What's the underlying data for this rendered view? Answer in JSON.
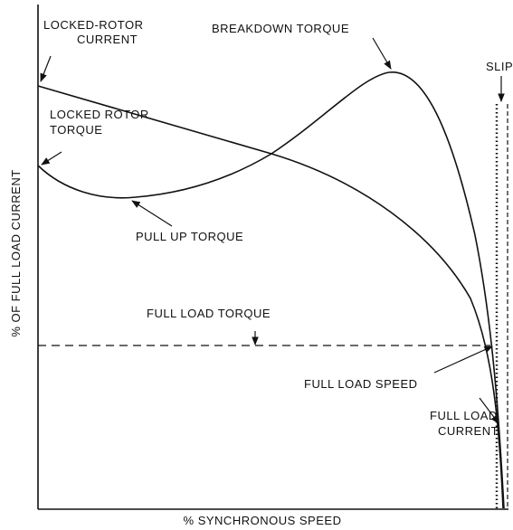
{
  "axes": {
    "y_label": "% OF FULL LOAD CURRENT",
    "x_label": "% SYNCHRONOUS SPEED"
  },
  "annotations": {
    "breakdown_torque": "BREAKDOWN TORQUE",
    "locked_rotor_current": [
      "LOCKED-ROTOR",
      "CURRENT"
    ],
    "slip": "SLIP",
    "locked_rotor_torque": [
      "LOCKED ROTOR",
      "TORQUE"
    ],
    "pull_up_torque": "PULL UP TORQUE",
    "full_load_torque": "FULL LOAD TORQUE",
    "full_load_speed": "FULL LOAD SPEED",
    "full_load_current": [
      "FULL LOAD",
      "CURRENT"
    ]
  }
}
